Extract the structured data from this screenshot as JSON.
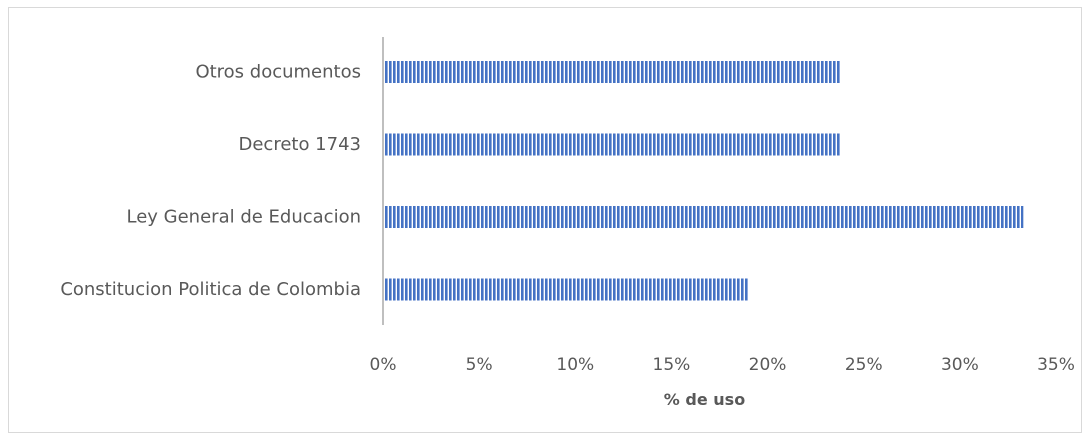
{
  "chart_data": {
    "type": "bar",
    "orientation": "horizontal",
    "categories": [
      "Otros documentos",
      "Decreto 1743",
      "Ley General de Educacion",
      "Constitucion Politica de Colombia"
    ],
    "values": [
      23.8,
      23.8,
      33.3,
      19.0
    ],
    "title": "",
    "xlabel": "% de uso",
    "ylabel": "",
    "xlim": [
      0,
      35
    ],
    "x_ticks": [
      "0%",
      "5%",
      "10%",
      "15%",
      "20%",
      "25%",
      "30%",
      "35%"
    ],
    "grid": false,
    "legend": "none",
    "bar_color": "#4472c4",
    "bar_pattern": "vertical-stripes"
  }
}
